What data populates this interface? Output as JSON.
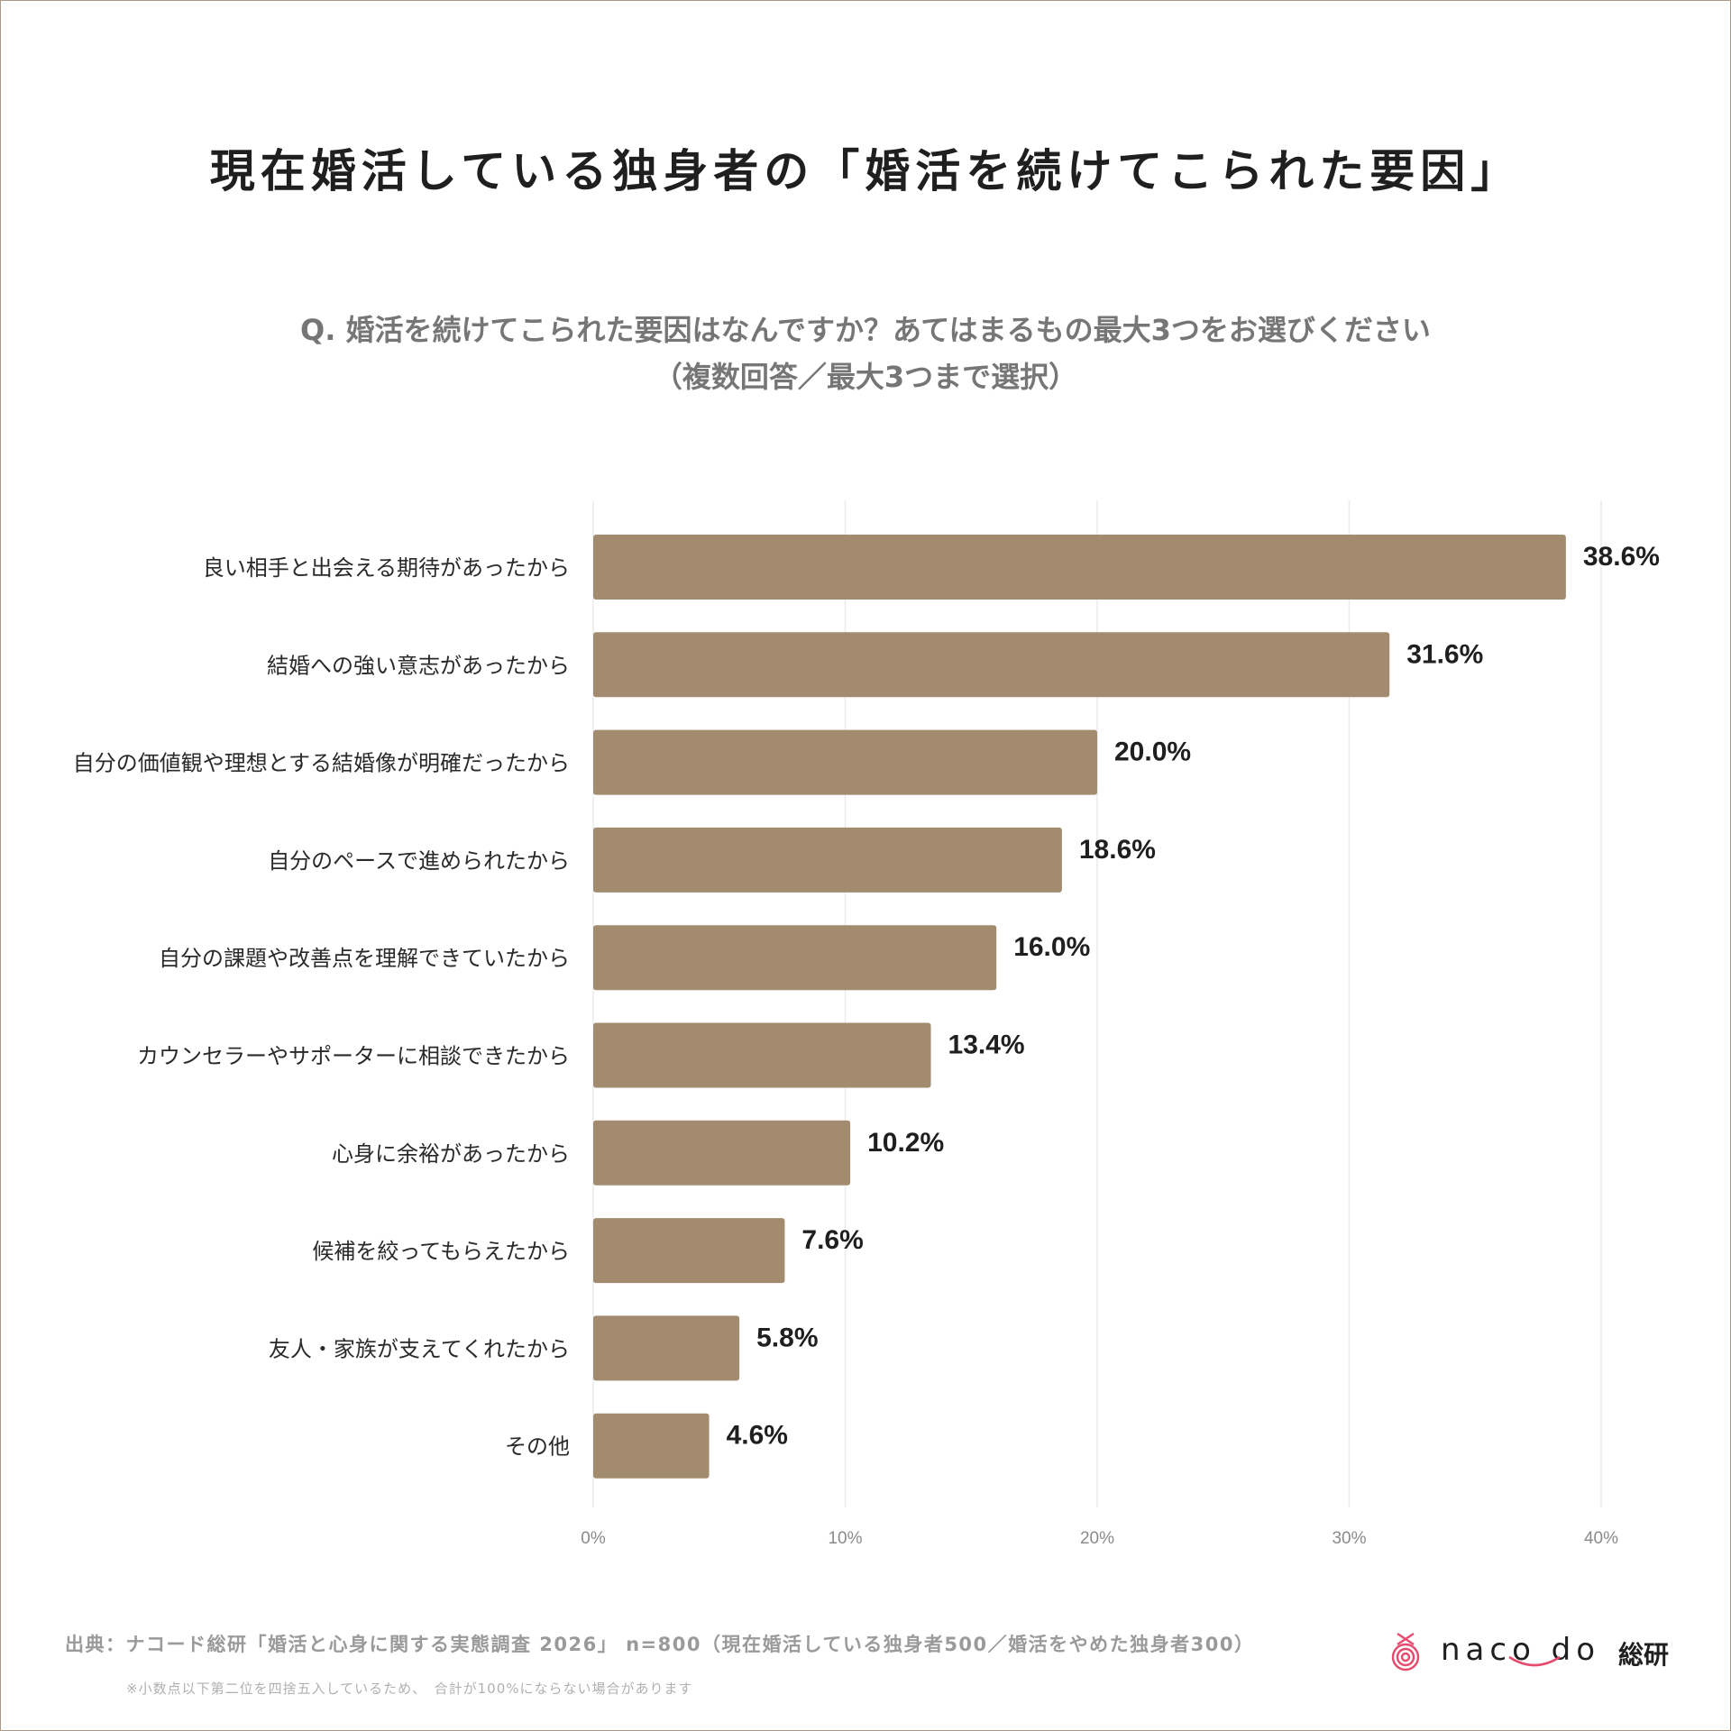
{
  "title": "現在婚活している独身者の「婚活を続けてこられた要因」",
  "question": {
    "line1": "Q. 婚活を続けてこられた要因はなんですか？あてはまるもの最大3つをお選びください",
    "line2": "（複数回答／最大3つまで選択）"
  },
  "chart_data": {
    "type": "bar",
    "orientation": "horizontal",
    "categories": [
      "良い相手と出会える期待があったから",
      "結婚への強い意志があったから",
      "自分の価値観や理想とする結婚像が明確だったから",
      "自分のペースで進められたから",
      "自分の課題や改善点を理解できていたから",
      "カウンセラーやサポーターに相談できたから",
      "心身に余裕があったから",
      "候補を絞ってもらえたから",
      "友人・家族が支えてくれたから",
      "その他"
    ],
    "values": [
      38.6,
      31.6,
      20.0,
      18.6,
      16.0,
      13.4,
      10.2,
      7.6,
      5.8,
      4.6
    ],
    "value_labels": [
      "38.6%",
      "31.6%",
      "20.0%",
      "18.6%",
      "16.0%",
      "13.4%",
      "10.2%",
      "7.6%",
      "5.8%",
      "4.6%"
    ],
    "xlim": [
      0,
      40
    ],
    "ticks": [
      0,
      10,
      20,
      30,
      40
    ],
    "tick_labels": [
      "0%",
      "10%",
      "20%",
      "30%",
      "40%"
    ],
    "grid": true,
    "bar_color": "#a28b6e"
  },
  "footer": {
    "source": "出典：ナコード総研「婚活と心身に関する実態調査 2026」 n=800（現在婚活している独身者500／婚活をやめた独身者300）",
    "note": "※小数点以下第二位を四捨五入しているため、　合計が100%にならない場合があります"
  },
  "logo": {
    "text": "naco do",
    "sub": "総研",
    "icon": "naco-do-knot-icon",
    "accent": "#e64a6e"
  }
}
